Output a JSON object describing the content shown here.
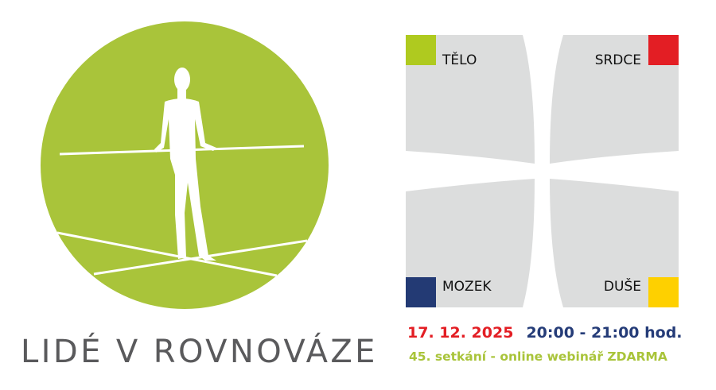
{
  "logo": {
    "brand_text": "LIDÉ V ROVNOVÁZE",
    "circle_color": "#a9c43a",
    "text_color": "#5a5a5c"
  },
  "quadrants": [
    {
      "label": "TĚLO",
      "color": "#afca1f"
    },
    {
      "label": "SRDCE",
      "color": "#e31e24"
    },
    {
      "label": "MOZEK",
      "color": "#233a74"
    },
    {
      "label": "DUŠE",
      "color": "#fed000"
    }
  ],
  "quadrant_fill": "#dcdddd",
  "event": {
    "date": "17. 12. 2025",
    "time": "20:00 - 21:00 hod.",
    "description": "45. setkání - online webinář ZDARMA",
    "date_color": "#e31e24",
    "time_color": "#253c78",
    "description_color": "#a9c43a"
  }
}
